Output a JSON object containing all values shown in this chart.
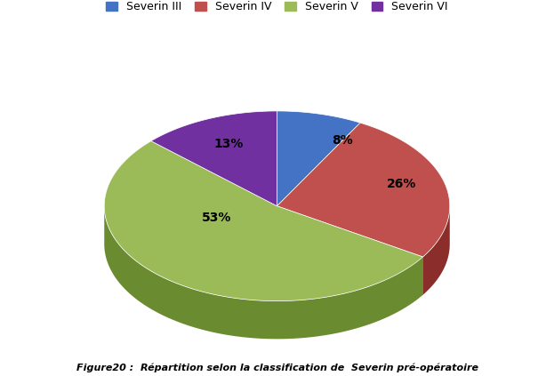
{
  "labels": [
    "Severin III",
    "Severin IV",
    "Severin V",
    "Severin VI"
  ],
  "values": [
    8,
    26,
    53,
    13
  ],
  "colors": [
    "#4472C4",
    "#C0504D",
    "#9BBB59",
    "#7030A0"
  ],
  "dark_colors": [
    "#2E509A",
    "#8B2E2B",
    "#6B8B30",
    "#4B1A70"
  ],
  "startangle": 90,
  "figure_caption": "Figure20 :  Répartition selon la classification de  Severin pré-opératoire",
  "background_color": "#ffffff"
}
